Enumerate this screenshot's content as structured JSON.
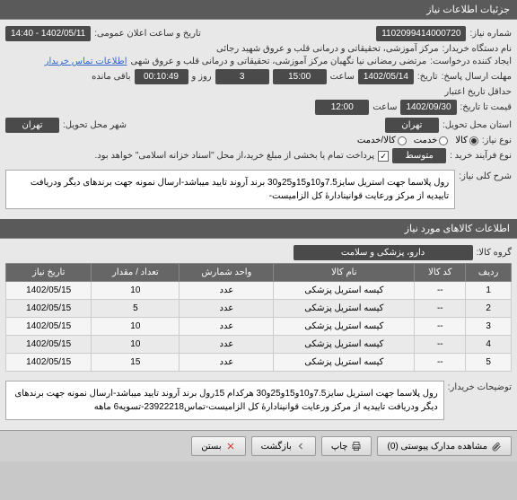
{
  "headers": {
    "details": "جزئیات اطلاعات نیاز",
    "goods": "اطلاعات کالاهای مورد نیاز"
  },
  "form": {
    "need_no_label": "شماره نیاز:",
    "need_no": "1102099414000720",
    "announce_label": "تاریخ و ساعت اعلان عمومی:",
    "announce_val": "1402/05/11 - 14:40",
    "buyer_label": "نام دستگاه خریدار:",
    "buyer_val": "مرکز آموزشی، تحقیقاتی و درمانی قلب و عروق شهید رجائی",
    "requester_label": "ایجاد کننده درخواست:",
    "requester_val": "مرتضی رمضانی نیا نگهبان مرکز آموزشی، تحقیقاتی و درمانی قلب و عروق شهی",
    "contact_link": "اطلاعات تماس خریدار",
    "deadline_label": "مهلت ارسال پاسخ:",
    "deadline_date": "1402/05/14",
    "deadline_hour_label": "ساعت",
    "deadline_hour": "15:00",
    "days_label": "روز و",
    "days": "3",
    "remain_label": "باقی مانده",
    "remain": "00:10:49",
    "credit_label": "حداقل تاریخ اعتبار",
    "credit_label2": "قیمت تا تاریخ:",
    "credit_date": "1402/09/30",
    "credit_hour": "12:00",
    "delivery_place_label": "استان محل تحویل:",
    "delivery_place": "تهران",
    "delivery_city_label": "شهر محل تحویل:",
    "delivery_city": "تهران",
    "need_type_label": "نوع نیاز:",
    "radio_goods": "کالا",
    "radio_service": "خدمت",
    "radio_both": "کالا/خدمت",
    "buy_process_label": "نوع فرآیند خرید :",
    "buy_process": "متوسط",
    "payment_note": "پرداخت تمام یا بخشی از مبلغ خرید،از محل \"اسناد خزانه اسلامی\" خواهد بود.",
    "checkbox_checked": true,
    "desc_label": "شرح کلی نیاز:",
    "desc_text": "رول پلاسما جهت استریل سایز7.5و10و15و25و30 برند آروند تایید میباشد-ارسال نمونه جهت برندهای دیگر ودریافت تاییدیه از مرکز ورعایت قوانینادارهٔ کل الزامیست-",
    "group_label": "گروه کالا:",
    "group_val": "دارو، پزشکی و سلامت",
    "buyer_notes_label": "توضیحات خریدار:",
    "buyer_notes": "رول پلاسما جهت استریل سایز7.5و10و15و25و30 هرکدام 15رول برند آروند تایید میباشد-ارسال نمونه جهت برندهای دیگر ودریافت تاییدیه از مرکز ورعایت قوانینادارهٔ کل الزامیست-تماس23922218-تسویه6 ماهه"
  },
  "table": {
    "cols": [
      "ردیف",
      "کد کالا",
      "نام کالا",
      "واحد شمارش",
      "تعداد / مقدار",
      "تاریخ نیاز"
    ],
    "rows": [
      [
        "1",
        "--",
        "کیسه استریل پزشکی",
        "عدد",
        "10",
        "1402/05/15"
      ],
      [
        "2",
        "--",
        "کیسه استریل پزشکی",
        "عدد",
        "5",
        "1402/05/15"
      ],
      [
        "3",
        "--",
        "کیسه استریل پزشکی",
        "عدد",
        "10",
        "1402/05/15"
      ],
      [
        "4",
        "--",
        "کیسه استریل پزشکی",
        "عدد",
        "10",
        "1402/05/15"
      ],
      [
        "5",
        "--",
        "کیسه استریل پزشکی",
        "عدد",
        "15",
        "1402/05/15"
      ]
    ]
  },
  "footer": {
    "attachments": "مشاهده مدارک پیوستی (0)",
    "print": "چاپ",
    "back": "بازگشت",
    "close": "بستن"
  }
}
